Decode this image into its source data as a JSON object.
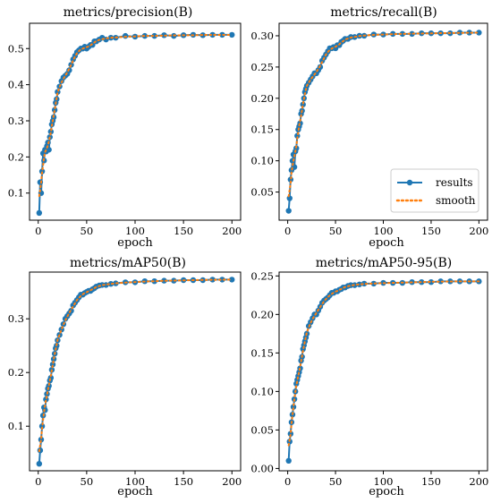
{
  "chart_data": [
    {
      "type": "line",
      "title": "metrics/precision(B)",
      "xlabel": "epoch",
      "ylabel": "",
      "xlim": [
        -9,
        209
      ],
      "ylim": [
        0.025,
        0.57
      ],
      "xticks": [
        0,
        50,
        100,
        150,
        200
      ],
      "yticks": [
        0.1,
        0.2,
        0.3,
        0.4,
        0.5
      ],
      "series": [
        {
          "name": "results",
          "x": [
            1,
            2,
            3,
            4,
            5,
            6,
            7,
            8,
            9,
            10,
            11,
            12,
            13,
            14,
            15,
            16,
            17,
            18,
            19,
            20,
            22,
            24,
            26,
            28,
            30,
            32,
            34,
            36,
            38,
            40,
            42,
            44,
            46,
            48,
            50,
            52,
            54,
            56,
            58,
            60,
            63,
            66,
            70,
            75,
            80,
            90,
            100,
            110,
            120,
            130,
            140,
            150,
            160,
            170,
            180,
            190,
            200
          ],
          "y": [
            0.045,
            0.13,
            0.1,
            0.16,
            0.21,
            0.19,
            0.22,
            0.215,
            0.23,
            0.24,
            0.22,
            0.255,
            0.27,
            0.29,
            0.3,
            0.31,
            0.33,
            0.35,
            0.36,
            0.38,
            0.395,
            0.41,
            0.42,
            0.425,
            0.43,
            0.44,
            0.455,
            0.47,
            0.48,
            0.49,
            0.495,
            0.5,
            0.5,
            0.505,
            0.5,
            0.505,
            0.51,
            0.51,
            0.52,
            0.52,
            0.525,
            0.53,
            0.525,
            0.53,
            0.53,
            0.535,
            0.533,
            0.535,
            0.535,
            0.537,
            0.535,
            0.537,
            0.538,
            0.537,
            0.538,
            0.538,
            0.538
          ]
        }
      ],
      "smooth": true,
      "legend": null
    },
    {
      "type": "line",
      "title": "metrics/recall(B)",
      "xlabel": "epoch",
      "ylabel": "",
      "xlim": [
        -9,
        209
      ],
      "ylim": [
        0.005,
        0.32
      ],
      "xticks": [
        0,
        50,
        100,
        150,
        200
      ],
      "yticks": [
        0.05,
        0.1,
        0.15,
        0.2,
        0.25,
        0.3
      ],
      "series": [
        {
          "name": "results",
          "x": [
            1,
            2,
            3,
            4,
            5,
            6,
            7,
            8,
            9,
            10,
            11,
            12,
            13,
            14,
            15,
            16,
            17,
            18,
            19,
            20,
            22,
            24,
            26,
            28,
            30,
            32,
            34,
            36,
            38,
            40,
            42,
            44,
            46,
            48,
            50,
            52,
            54,
            56,
            58,
            60,
            63,
            66,
            70,
            75,
            80,
            90,
            100,
            110,
            120,
            130,
            140,
            150,
            160,
            170,
            180,
            190,
            200
          ],
          "y": [
            0.02,
            0.04,
            0.07,
            0.085,
            0.1,
            0.11,
            0.09,
            0.115,
            0.12,
            0.14,
            0.15,
            0.155,
            0.16,
            0.175,
            0.18,
            0.19,
            0.2,
            0.21,
            0.215,
            0.22,
            0.225,
            0.23,
            0.235,
            0.24,
            0.24,
            0.245,
            0.25,
            0.26,
            0.265,
            0.27,
            0.275,
            0.28,
            0.28,
            0.282,
            0.28,
            0.285,
            0.285,
            0.29,
            0.292,
            0.295,
            0.295,
            0.298,
            0.298,
            0.3,
            0.3,
            0.302,
            0.302,
            0.303,
            0.303,
            0.303,
            0.304,
            0.304,
            0.304,
            0.304,
            0.305,
            0.305,
            0.305
          ]
        }
      ],
      "smooth": true,
      "legend": {
        "position": "lower right",
        "entries": [
          {
            "label": "results",
            "style": "line-marker"
          },
          {
            "label": "smooth",
            "style": "dotted"
          }
        ]
      }
    },
    {
      "type": "line",
      "title": "metrics/mAP50(B)",
      "xlabel": "epoch",
      "ylabel": "",
      "xlim": [
        -9,
        209
      ],
      "ylim": [
        0.017,
        0.387
      ],
      "xticks": [
        0,
        50,
        100,
        150,
        200
      ],
      "yticks": [
        0.1,
        0.2,
        0.3
      ],
      "series": [
        {
          "name": "results",
          "x": [
            1,
            2,
            3,
            4,
            5,
            6,
            7,
            8,
            9,
            10,
            11,
            12,
            13,
            14,
            15,
            16,
            17,
            18,
            19,
            20,
            22,
            24,
            26,
            28,
            30,
            32,
            34,
            36,
            38,
            40,
            42,
            44,
            46,
            48,
            50,
            52,
            54,
            56,
            58,
            60,
            63,
            66,
            70,
            75,
            80,
            90,
            100,
            110,
            120,
            130,
            140,
            150,
            160,
            170,
            180,
            190,
            200
          ],
          "y": [
            0.03,
            0.055,
            0.075,
            0.1,
            0.12,
            0.135,
            0.13,
            0.15,
            0.16,
            0.17,
            0.175,
            0.185,
            0.19,
            0.205,
            0.215,
            0.225,
            0.235,
            0.245,
            0.25,
            0.26,
            0.27,
            0.28,
            0.29,
            0.3,
            0.305,
            0.31,
            0.315,
            0.325,
            0.33,
            0.335,
            0.34,
            0.345,
            0.345,
            0.348,
            0.35,
            0.352,
            0.352,
            0.355,
            0.357,
            0.36,
            0.362,
            0.363,
            0.363,
            0.365,
            0.366,
            0.368,
            0.368,
            0.37,
            0.37,
            0.371,
            0.371,
            0.372,
            0.372,
            0.372,
            0.373,
            0.373,
            0.373
          ]
        }
      ],
      "smooth": true,
      "legend": null
    },
    {
      "type": "line",
      "title": "metrics/mAP50-95(B)",
      "xlabel": "epoch",
      "ylabel": "",
      "xlim": [
        -9,
        209
      ],
      "ylim": [
        -0.003,
        0.255
      ],
      "xticks": [
        0,
        50,
        100,
        150,
        200
      ],
      "yticks": [
        0.0,
        0.05,
        0.1,
        0.15,
        0.2,
        0.25
      ],
      "series": [
        {
          "name": "results",
          "x": [
            1,
            2,
            3,
            4,
            5,
            6,
            7,
            8,
            9,
            10,
            11,
            12,
            13,
            14,
            15,
            16,
            17,
            18,
            19,
            20,
            22,
            24,
            26,
            28,
            30,
            32,
            34,
            36,
            38,
            40,
            42,
            44,
            46,
            48,
            50,
            52,
            54,
            56,
            58,
            60,
            63,
            66,
            70,
            75,
            80,
            90,
            100,
            110,
            120,
            130,
            140,
            150,
            160,
            170,
            180,
            190,
            200
          ],
          "y": [
            0.01,
            0.035,
            0.045,
            0.06,
            0.07,
            0.08,
            0.09,
            0.1,
            0.11,
            0.115,
            0.12,
            0.125,
            0.13,
            0.14,
            0.145,
            0.155,
            0.16,
            0.165,
            0.17,
            0.175,
            0.185,
            0.19,
            0.195,
            0.2,
            0.2,
            0.205,
            0.21,
            0.215,
            0.218,
            0.22,
            0.222,
            0.225,
            0.228,
            0.228,
            0.23,
            0.23,
            0.232,
            0.233,
            0.235,
            0.235,
            0.237,
            0.238,
            0.238,
            0.239,
            0.24,
            0.24,
            0.241,
            0.241,
            0.241,
            0.242,
            0.242,
            0.242,
            0.243,
            0.243,
            0.243,
            0.243,
            0.243
          ]
        }
      ],
      "smooth": true,
      "legend": null
    }
  ],
  "colors": {
    "results": "#1f77b4",
    "smooth": "#ff7f0e"
  }
}
